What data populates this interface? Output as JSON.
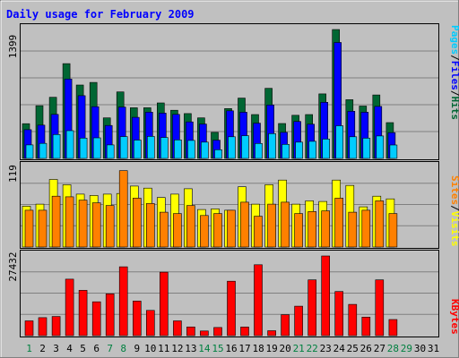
{
  "chart_data": [
    {
      "type": "bar",
      "title": "Daily usage for February 2009",
      "panel": "top",
      "y_label_max": "1399",
      "ylim": [
        0,
        1399
      ],
      "categories": [
        "1",
        "2",
        "3",
        "4",
        "5",
        "6",
        "7",
        "8",
        "9",
        "10",
        "11",
        "12",
        "13",
        "14",
        "15",
        "16",
        "17",
        "18",
        "19",
        "20",
        "21",
        "22",
        "23",
        "24",
        "25",
        "26",
        "27",
        "28",
        "29",
        "30",
        "31"
      ],
      "legend_parts": [
        "Pages",
        "/",
        "Files",
        "/",
        "Hits"
      ],
      "series": [
        {
          "name": "Hits",
          "color": "#006633",
          "values": [
            377,
            572,
            664,
            1029,
            797,
            825,
            440,
            722,
            550,
            550,
            602,
            523,
            487,
            440,
            283,
            541,
            655,
            476,
            761,
            379,
            468,
            476,
            700,
            1399,
            637,
            568,
            689,
            389,
            0,
            0,
            0
          ]
        },
        {
          "name": "Files",
          "color": "#0000ff",
          "values": [
            312,
            361,
            478,
            862,
            681,
            562,
            358,
            558,
            446,
            502,
            492,
            478,
            396,
            373,
            198,
            517,
            501,
            383,
            580,
            283,
            401,
            371,
            609,
            1258,
            512,
            501,
            564,
            280,
            0,
            0,
            0
          ]
        },
        {
          "name": "Pages",
          "color": "#00ccff",
          "values": [
            147,
            163,
            259,
            301,
            221,
            223,
            147,
            237,
            199,
            239,
            227,
            201,
            195,
            177,
            94,
            235,
            247,
            162,
            269,
            153,
            177,
            186,
            210,
            355,
            235,
            220,
            244,
            146,
            0,
            0,
            0
          ]
        }
      ]
    },
    {
      "type": "bar",
      "panel": "middle",
      "y_label_max": "119",
      "ylim": [
        0,
        119
      ],
      "legend_parts": [
        "Sites",
        "/",
        "Visits"
      ],
      "series": [
        {
          "name": "Visits",
          "color": "#ffff00",
          "values": [
            61,
            64,
            101,
            93,
            79,
            77,
            79,
            80,
            91,
            88,
            74,
            79,
            87,
            56,
            57,
            55,
            90,
            64,
            93,
            100,
            64,
            69,
            68,
            100,
            92,
            60,
            76,
            72,
            0,
            0,
            0
          ]
        },
        {
          "name": "Sites",
          "color": "#ff8000",
          "values": [
            55,
            55,
            76,
            75,
            70,
            66,
            62,
            114,
            73,
            65,
            52,
            50,
            62,
            47,
            50,
            55,
            67,
            46,
            64,
            67,
            50,
            53,
            54,
            73,
            52,
            55,
            69,
            50,
            0,
            0,
            0
          ]
        }
      ]
    },
    {
      "type": "bar",
      "panel": "bottom",
      "y_label_max": "27432",
      "ylim": [
        0,
        27432
      ],
      "legend_parts": [
        "KBytes"
      ],
      "series": [
        {
          "name": "KBytes",
          "color": "#ff0000",
          "values": [
            5082,
            6210,
            6600,
            19440,
            15600,
            11650,
            14400,
            23700,
            11900,
            8700,
            21850,
            5100,
            3000,
            1600,
            2800,
            18750,
            2950,
            24400,
            1700,
            7200,
            10150,
            19190,
            27432,
            15200,
            10750,
            6390,
            19190,
            5560,
            0,
            0,
            0
          ]
        }
      ]
    }
  ],
  "colors": {
    "background": "#c0c0c0",
    "plot_area": "#c0c0c0",
    "title": "#0000ff",
    "hits": "#006633",
    "files": "#0000ff",
    "pages": "#00ccff",
    "visits": "#ffff00",
    "sites": "#ff8000",
    "kbytes": "#ff0000",
    "weekend_label": "#008040",
    "weekday_label": "#000000"
  },
  "weekend_days": [
    1,
    7,
    8,
    14,
    15,
    21,
    22,
    28,
    29
  ]
}
